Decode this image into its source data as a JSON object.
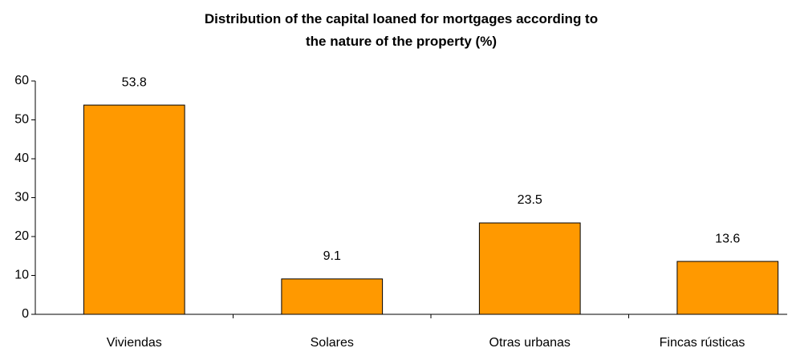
{
  "chart_data": {
    "type": "bar",
    "title": "Distribution of the capital loaned for mortgages according to the nature of the property (%)",
    "categories": [
      "Viviendas",
      "Solares",
      "Otras urbanas",
      "Fincas rústicas"
    ],
    "values": [
      53.8,
      9.1,
      23.5,
      13.6
    ],
    "color": "#ff9900",
    "ylim": [
      0,
      60
    ],
    "yticks": [
      0,
      10,
      20,
      30,
      40,
      50,
      60
    ],
    "grid": false
  }
}
